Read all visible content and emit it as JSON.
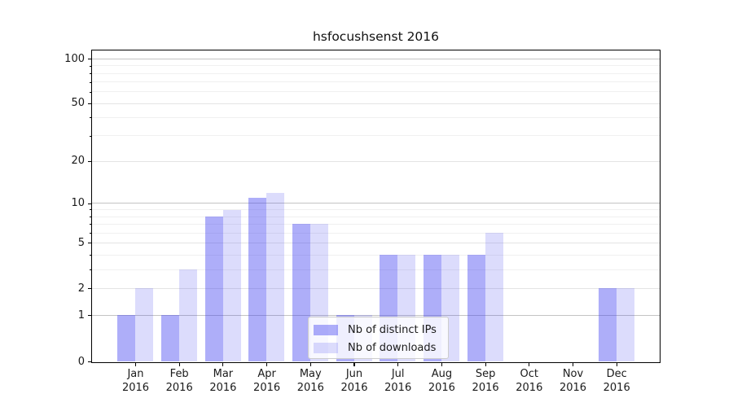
{
  "chart_data": {
    "type": "bar",
    "title": "hsfocushsenst 2016",
    "categories": [
      "Jan",
      "Feb",
      "Mar",
      "Apr",
      "May",
      "Jun",
      "Jul",
      "Aug",
      "Sep",
      "Oct",
      "Nov",
      "Dec"
    ],
    "x_axis": {
      "year_line": "2016"
    },
    "series": [
      {
        "name": "Nb of distinct IPs",
        "color": "rgba(62,62,240,0.42)",
        "values": [
          1,
          1,
          8,
          11,
          7,
          1,
          4,
          4,
          4,
          0,
          0,
          2
        ]
      },
      {
        "name": "Nb of downloads",
        "color": "rgba(62,62,240,0.18)",
        "values": [
          2,
          3,
          9,
          12,
          7,
          1,
          4,
          4,
          6,
          0,
          0,
          2
        ]
      }
    ],
    "y_axis": {
      "tick_values": [
        0,
        1,
        2,
        5,
        10,
        20,
        50,
        100
      ],
      "tick_labels": [
        "0",
        "1",
        "2",
        "5",
        "10",
        "20",
        "50",
        "100"
      ],
      "minor_values": [
        3,
        4,
        6,
        7,
        8,
        9,
        30,
        40,
        60,
        70,
        80,
        90
      ],
      "strong_gridline_values": [
        1,
        10,
        100
      ],
      "scale": "quasi-log (log10(1+v/0.96))",
      "range": [
        0,
        120
      ]
    },
    "legend": {
      "position": "lower-center",
      "entries": [
        "Nb of distinct IPs",
        "Nb of downloads"
      ]
    },
    "grid": "on"
  },
  "colors": {
    "background": "#ffffff",
    "bar_distinct_ips": "rgba(62,62,240,0.42)",
    "bar_downloads": "rgba(62,62,240,0.18)",
    "gridline_strong": "#c4c4c4",
    "gridline_mid": "#e4e4e4",
    "gridline_minor": "#f0f0f0",
    "axis_line": "#000000",
    "text": "#1a1a1a",
    "legend_border": "#cccccc"
  }
}
